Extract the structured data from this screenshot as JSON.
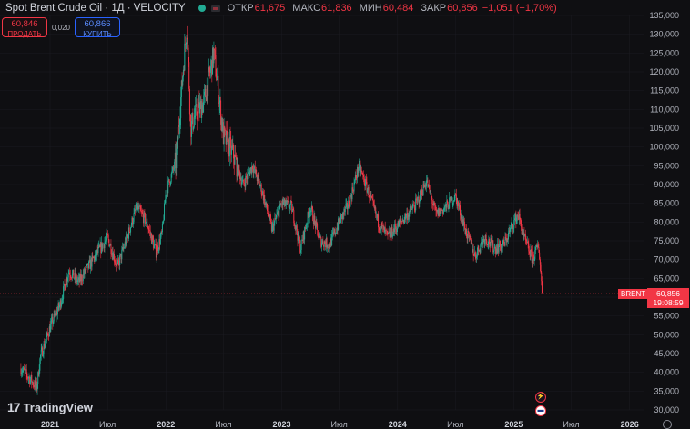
{
  "header": {
    "title": "Spot Brent Crude Oil · 1Д · VELOCITY",
    "ohlc": [
      {
        "label": "ОТКР",
        "value": "61,675"
      },
      {
        "label": "МАКС",
        "value": "61,836"
      },
      {
        "label": "МИН",
        "value": "60,484"
      },
      {
        "label": "ЗАКР",
        "value": "60,856"
      },
      {
        "label": "",
        "value": "−1,051 (−1,70%)"
      }
    ]
  },
  "trade": {
    "sell_price": "60,846",
    "sell_label": "ПРОДАТЬ",
    "spread": "0,020",
    "buy_price": "60,866",
    "buy_label": "КУПИТЬ"
  },
  "price_tag": {
    "symbol": "BRENT",
    "price": "60,856",
    "countdown": "19:08:59"
  },
  "logo": {
    "text": "TradingView"
  },
  "colors": {
    "background": "#0f0f12",
    "up": "#22ab94",
    "down": "#f23645",
    "grid": "#1c1c22",
    "buy": "#2962ff"
  },
  "chart_data": {
    "type": "candlestick",
    "symbol": "BRENT",
    "interval": "1D",
    "last_price": 60.856,
    "ylim": [
      30,
      135
    ],
    "y_ticks": [
      "135,000",
      "130,000",
      "125,000",
      "120,000",
      "115,000",
      "110,000",
      "105,000",
      "100,000",
      "95,000",
      "90,000",
      "85,000",
      "80,000",
      "75,000",
      "70,000",
      "65,000",
      "60,000",
      "55,000",
      "50,000",
      "45,000",
      "40,000",
      "35,000",
      "30,000"
    ],
    "x_ticks": [
      {
        "label": "2021",
        "date": "2021-01",
        "bold": true
      },
      {
        "label": "Июл",
        "date": "2021-07",
        "bold": false
      },
      {
        "label": "2022",
        "date": "2022-01",
        "bold": true
      },
      {
        "label": "Июл",
        "date": "2022-07",
        "bold": false
      },
      {
        "label": "2023",
        "date": "2023-01",
        "bold": true
      },
      {
        "label": "Июл",
        "date": "2023-07",
        "bold": false
      },
      {
        "label": "2024",
        "date": "2024-01",
        "bold": true
      },
      {
        "label": "Июл",
        "date": "2024-07",
        "bold": false
      },
      {
        "label": "2025",
        "date": "2025-01",
        "bold": true
      },
      {
        "label": "Июл",
        "date": "2025-07",
        "bold": false
      },
      {
        "label": "2026",
        "date": "2026-01",
        "bold": true
      }
    ],
    "close_path": [
      {
        "date": "2020-10",
        "close": 41
      },
      {
        "date": "2020-11",
        "close": 38
      },
      {
        "date": "2020-11-20",
        "close": 36
      },
      {
        "date": "2020-12",
        "close": 44
      },
      {
        "date": "2021-01",
        "close": 52
      },
      {
        "date": "2021-02",
        "close": 58
      },
      {
        "date": "2021-03",
        "close": 67
      },
      {
        "date": "2021-04",
        "close": 64
      },
      {
        "date": "2021-05",
        "close": 68
      },
      {
        "date": "2021-06",
        "close": 72
      },
      {
        "date": "2021-07",
        "close": 76
      },
      {
        "date": "2021-08",
        "close": 68
      },
      {
        "date": "2021-09",
        "close": 76
      },
      {
        "date": "2021-10",
        "close": 84
      },
      {
        "date": "2021-11",
        "close": 80
      },
      {
        "date": "2021-12",
        "close": 72
      },
      {
        "date": "2021-12-20",
        "close": 77
      },
      {
        "date": "2022-01",
        "close": 88
      },
      {
        "date": "2022-02",
        "close": 96
      },
      {
        "date": "2022-03-08",
        "close": 133
      },
      {
        "date": "2022-03-20",
        "close": 105
      },
      {
        "date": "2022-04",
        "close": 108
      },
      {
        "date": "2022-05",
        "close": 112
      },
      {
        "date": "2022-06",
        "close": 125
      },
      {
        "date": "2022-07",
        "close": 103
      },
      {
        "date": "2022-08",
        "close": 98
      },
      {
        "date": "2022-09",
        "close": 90
      },
      {
        "date": "2022-10",
        "close": 95
      },
      {
        "date": "2022-11",
        "close": 88
      },
      {
        "date": "2022-12",
        "close": 78
      },
      {
        "date": "2023-01",
        "close": 85
      },
      {
        "date": "2023-02",
        "close": 84
      },
      {
        "date": "2023-03",
        "close": 73
      },
      {
        "date": "2023-04",
        "close": 84
      },
      {
        "date": "2023-05",
        "close": 75
      },
      {
        "date": "2023-06",
        "close": 74
      },
      {
        "date": "2023-07",
        "close": 80
      },
      {
        "date": "2023-08",
        "close": 85
      },
      {
        "date": "2023-09",
        "close": 95
      },
      {
        "date": "2023-10",
        "close": 88
      },
      {
        "date": "2023-11",
        "close": 80
      },
      {
        "date": "2023-12",
        "close": 76
      },
      {
        "date": "2024-01",
        "close": 79
      },
      {
        "date": "2024-02",
        "close": 82
      },
      {
        "date": "2024-03",
        "close": 85
      },
      {
        "date": "2024-04",
        "close": 91
      },
      {
        "date": "2024-05",
        "close": 82
      },
      {
        "date": "2024-06",
        "close": 84
      },
      {
        "date": "2024-07",
        "close": 87
      },
      {
        "date": "2024-08",
        "close": 78
      },
      {
        "date": "2024-09",
        "close": 71
      },
      {
        "date": "2024-10",
        "close": 76
      },
      {
        "date": "2024-11",
        "close": 73
      },
      {
        "date": "2024-12",
        "close": 74
      },
      {
        "date": "2025-01",
        "close": 80
      },
      {
        "date": "2025-01-15",
        "close": 82
      },
      {
        "date": "2025-02",
        "close": 76
      },
      {
        "date": "2025-03",
        "close": 70
      },
      {
        "date": "2025-03-20",
        "close": 74
      },
      {
        "date": "2025-04",
        "close": 61
      }
    ]
  }
}
